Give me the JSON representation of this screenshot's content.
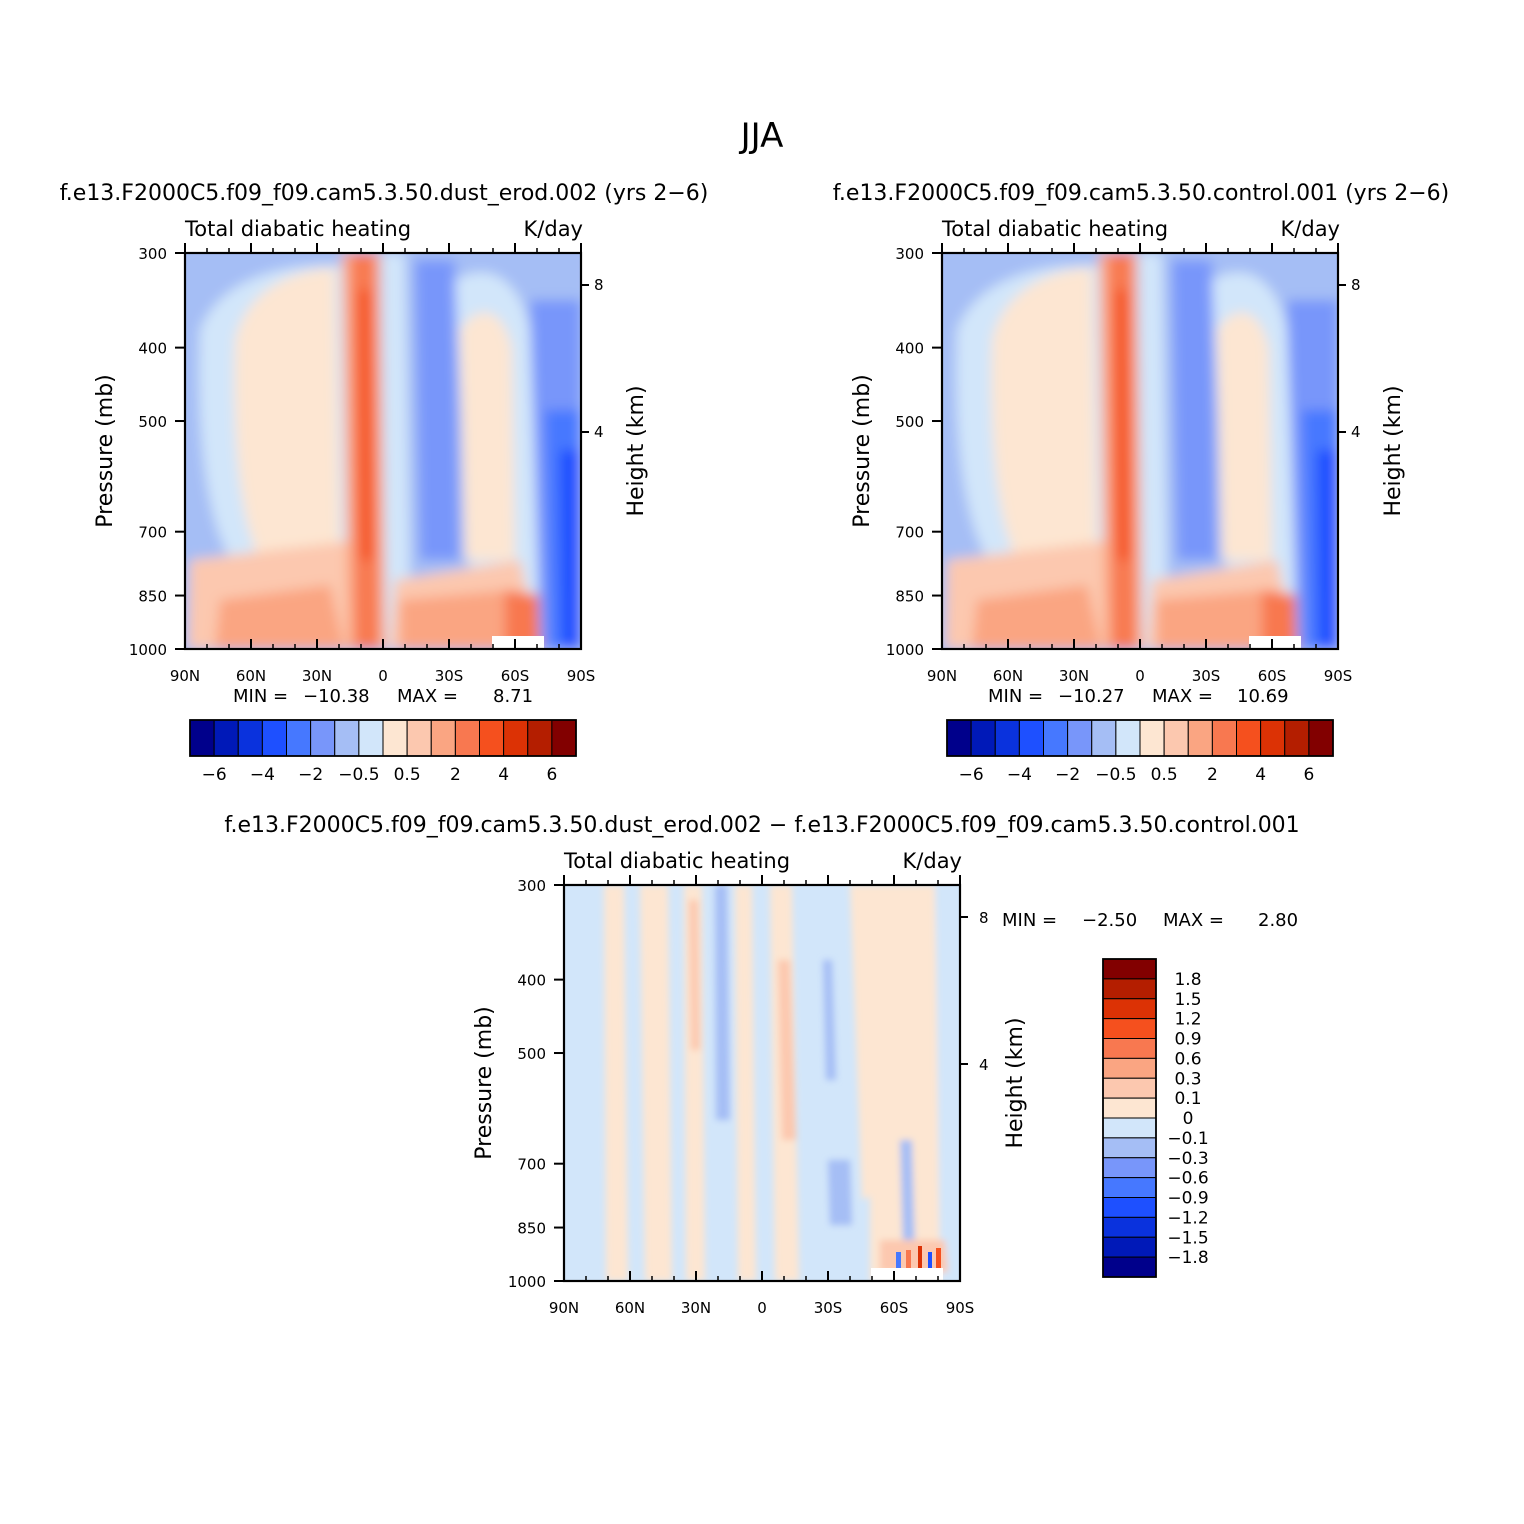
{
  "figure": {
    "title": "JJA"
  },
  "colors": {
    "palette": [
      "#00008b",
      "#0019b8",
      "#0a32dd",
      "#1e50ff",
      "#4678ff",
      "#7896fa",
      "#a5bef5",
      "#d2e6fa",
      "#fde6d2",
      "#fcc8af",
      "#faa582",
      "#f87850",
      "#f5501e",
      "#dc3205",
      "#b41e00",
      "#820000"
    ]
  },
  "chart_data": [
    {
      "type": "heatmap",
      "panel": "top-left",
      "title": "f.e13.F2000C5.f09_f09.cam5.3.50.dust_erod.002 (yrs 2-6)",
      "subtitle_left": "Total diabatic heating",
      "subtitle_right": "K/day",
      "xlabel": "",
      "ylabel": "Pressure (mb)",
      "y2label": "Height (km)",
      "x_ticks": [
        "90N",
        "60N",
        "30N",
        "0",
        "30S",
        "60S",
        "90S"
      ],
      "x_range": [
        90,
        -90
      ],
      "y_ticks": [
        "300",
        "400",
        "500",
        "700",
        "850",
        "1000"
      ],
      "y_range": [
        300,
        1000
      ],
      "y_scale": "log",
      "y2_ticks": [
        "8",
        "4"
      ],
      "min_label": "MIN =",
      "min_value": "-10.38",
      "max_label": "MAX =",
      "max_value": "8.71",
      "colorbar_orientation": "horizontal",
      "colorbar_levels": [
        "-6",
        "-4",
        "-2",
        "-0.5",
        "0.5",
        "2",
        "4",
        "6"
      ],
      "colorbar_edges": [
        -7,
        -6,
        -5,
        -4,
        -3,
        -2,
        -1,
        -0.5,
        0,
        0.5,
        1,
        2,
        3,
        4,
        5,
        6,
        7
      ]
    },
    {
      "type": "heatmap",
      "panel": "top-right",
      "title": "f.e13.F2000C5.f09_f09.cam5.3.50.control.001 (yrs 2-6)",
      "subtitle_left": "Total diabatic heating",
      "subtitle_right": "K/day",
      "xlabel": "",
      "ylabel": "Pressure (mb)",
      "y2label": "Height (km)",
      "x_ticks": [
        "90N",
        "60N",
        "30N",
        "0",
        "30S",
        "60S",
        "90S"
      ],
      "x_range": [
        90,
        -90
      ],
      "y_ticks": [
        "300",
        "400",
        "500",
        "700",
        "850",
        "1000"
      ],
      "y_range": [
        300,
        1000
      ],
      "y_scale": "log",
      "y2_ticks": [
        "8",
        "4"
      ],
      "min_label": "MIN =",
      "min_value": "-10.27",
      "max_label": "MAX =",
      "max_value": "10.69",
      "colorbar_orientation": "horizontal",
      "colorbar_levels": [
        "-6",
        "-4",
        "-2",
        "-0.5",
        "0.5",
        "2",
        "4",
        "6"
      ],
      "colorbar_edges": [
        -7,
        -6,
        -5,
        -4,
        -3,
        -2,
        -1,
        -0.5,
        0,
        0.5,
        1,
        2,
        3,
        4,
        5,
        6,
        7
      ]
    },
    {
      "type": "heatmap",
      "panel": "bottom-center",
      "title": "f.e13.F2000C5.f09_f09.cam5.3.50.dust_erod.002 - f.e13.F2000C5.f09_f09.cam5.3.50.control.001",
      "subtitle_left": "Total diabatic heating",
      "subtitle_right": "K/day",
      "xlabel": "",
      "ylabel": "Pressure (mb)",
      "y2label": "Height (km)",
      "x_ticks": [
        "90N",
        "60N",
        "30N",
        "0",
        "30S",
        "60S",
        "90S"
      ],
      "x_range": [
        90,
        -90
      ],
      "y_ticks": [
        "300",
        "400",
        "500",
        "700",
        "850",
        "1000"
      ],
      "y_range": [
        300,
        1000
      ],
      "y_scale": "log",
      "y2_ticks": [
        "8",
        "4"
      ],
      "min_label": "MIN =",
      "min_value": "-2.50",
      "max_label": "MAX =",
      "max_value": "2.80",
      "colorbar_orientation": "vertical",
      "colorbar_levels": [
        "1.8",
        "1.5",
        "1.2",
        "0.9",
        "0.6",
        "0.3",
        "0.1",
        "0",
        "-0.1",
        "-0.3",
        "-0.6",
        "-0.9",
        "-1.2",
        "-1.5",
        "-1.8"
      ]
    }
  ]
}
